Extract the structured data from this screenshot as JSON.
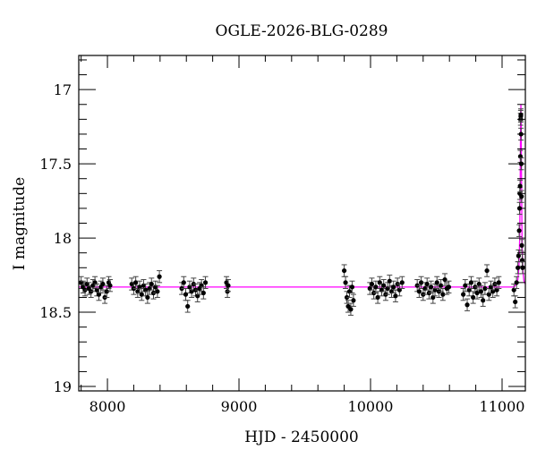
{
  "chart_data": {
    "type": "scatter",
    "title": "OGLE-2026-BLG-0289",
    "xlabel": "HJD - 2450000",
    "ylabel": "I magnitude",
    "xlim": [
      7782,
      11177
    ],
    "ylim": [
      19.03,
      16.77
    ],
    "y_inverted": true,
    "grid": false,
    "x_ticks": [
      8000,
      9000,
      10000,
      11000
    ],
    "x_tick_labels": [
      "8000",
      "9000",
      "10000",
      "11000"
    ],
    "y_ticks": [
      17,
      17.5,
      18,
      18.5,
      19
    ],
    "y_tick_labels": [
      "17",
      "17.5",
      "18",
      "18.5",
      "19"
    ],
    "colors": {
      "data": "#000000",
      "model": "#ff00ff"
    },
    "series": [
      {
        "kind": "data-with-errorbars",
        "x": [
          7800,
          7815,
          7830,
          7845,
          7860,
          7875,
          7890,
          7905,
          7920,
          7935,
          7950,
          7965,
          7980,
          7995,
          8010,
          8020,
          8185,
          8200,
          8215,
          8230,
          8245,
          8260,
          8275,
          8290,
          8305,
          8320,
          8335,
          8350,
          8365,
          8380,
          8395,
          8565,
          8580,
          8595,
          8610,
          8625,
          8640,
          8655,
          8670,
          8685,
          8700,
          8715,
          8730,
          8745,
          8905,
          8912,
          8918,
          9800,
          9810,
          9820,
          9830,
          9840,
          9850,
          9860,
          9870,
          9995,
          10010,
          10025,
          10040,
          10055,
          10070,
          10085,
          10100,
          10115,
          10130,
          10145,
          10160,
          10175,
          10190,
          10205,
          10220,
          10240,
          10355,
          10370,
          10385,
          10400,
          10415,
          10430,
          10445,
          10460,
          10475,
          10490,
          10505,
          10520,
          10535,
          10550,
          10565,
          10580,
          10595,
          10705,
          10720,
          10735,
          10750,
          10765,
          10780,
          10795,
          10810,
          10825,
          10840,
          10855,
          10870,
          10885,
          10900,
          10915,
          10930,
          10945,
          10960,
          10975,
          11090,
          11100,
          11110,
          11120,
          11125,
          11130,
          11133,
          11135,
          11137,
          11139,
          11141,
          11142,
          11143,
          11144,
          11146,
          11148,
          11150,
          11153,
          11156
        ],
        "y": [
          18.3,
          18.33,
          18.35,
          18.31,
          18.34,
          18.36,
          18.32,
          18.3,
          18.35,
          18.38,
          18.33,
          18.31,
          18.4,
          18.36,
          18.3,
          18.32,
          18.31,
          18.34,
          18.3,
          18.36,
          18.33,
          18.38,
          18.32,
          18.35,
          18.4,
          18.34,
          18.31,
          18.37,
          18.33,
          18.36,
          18.26,
          18.34,
          18.3,
          18.38,
          18.46,
          18.33,
          18.36,
          18.31,
          18.35,
          18.39,
          18.34,
          18.32,
          18.37,
          18.3,
          18.3,
          18.36,
          18.32,
          18.22,
          18.3,
          18.4,
          18.46,
          18.36,
          18.48,
          18.33,
          18.42,
          18.34,
          18.31,
          18.37,
          18.33,
          18.4,
          18.3,
          18.35,
          18.32,
          18.38,
          18.34,
          18.29,
          18.36,
          18.33,
          18.39,
          18.31,
          18.35,
          18.3,
          18.32,
          18.36,
          18.3,
          18.38,
          18.34,
          18.31,
          18.37,
          18.33,
          18.4,
          18.35,
          18.3,
          18.36,
          18.32,
          18.38,
          18.28,
          18.34,
          18.33,
          18.38,
          18.32,
          18.45,
          18.35,
          18.3,
          18.4,
          18.33,
          18.37,
          18.31,
          18.36,
          18.42,
          18.34,
          18.22,
          18.38,
          18.33,
          18.36,
          18.31,
          18.35,
          18.3,
          18.35,
          18.43,
          18.3,
          18.2,
          18.12,
          17.95,
          17.8,
          17.7,
          17.65,
          17.45,
          17.2,
          17.18,
          17.17,
          17.3,
          17.5,
          17.72,
          18.05,
          18.15,
          18.2
        ],
        "error": 0.04
      },
      {
        "kind": "model-line",
        "x": [
          7782,
          11090,
          11110,
          11120,
          11128,
          11134,
          11138,
          11141,
          11143,
          11145,
          11148,
          11152,
          11158,
          11166,
          11177
        ],
        "y": [
          18.33,
          18.33,
          18.31,
          18.28,
          18.2,
          18.0,
          17.6,
          17.2,
          17.1,
          17.2,
          17.6,
          18.05,
          18.22,
          18.29,
          18.31
        ]
      }
    ]
  }
}
